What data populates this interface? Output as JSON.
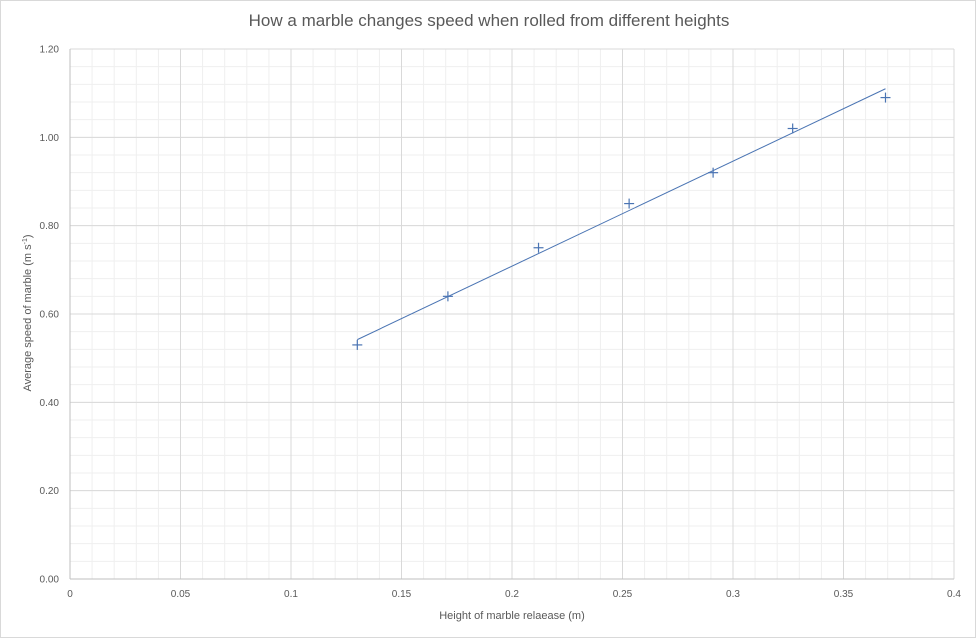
{
  "chart_data": {
    "type": "scatter",
    "title": "How a marble changes speed when rolled from different heights",
    "xlabel": "Height of marble relaease (m)",
    "ylabel": "Average speed of marble (m s",
    "ylabel_superscript": "-1",
    "ylabel_suffix": ")",
    "xlim": [
      0,
      0.4
    ],
    "ylim": [
      0,
      1.2
    ],
    "x_ticks": [
      "0",
      "0.05",
      "0.1",
      "0.15",
      "0.2",
      "0.25",
      "0.3",
      "0.35",
      "0.4"
    ],
    "y_ticks": [
      "0.00",
      "0.20",
      "0.40",
      "0.60",
      "0.80",
      "1.00",
      "1.20"
    ],
    "grid": true,
    "legend": "none",
    "marker": "plus",
    "series": [
      {
        "x": [
          0.13,
          0.171,
          0.212,
          0.253,
          0.291,
          0.327,
          0.369
        ],
        "y": [
          0.53,
          0.64,
          0.75,
          0.85,
          0.92,
          1.02,
          1.09
        ]
      }
    ],
    "trendline": {
      "type": "linear",
      "x": [
        0.13,
        0.369
      ],
      "y": [
        0.542,
        1.11
      ]
    },
    "colors": {
      "series": "#4a74b3",
      "trendline": "#4a74b3",
      "major_grid": "#d9d9d9",
      "minor_grid": "#efefef",
      "text": "#595959"
    }
  }
}
